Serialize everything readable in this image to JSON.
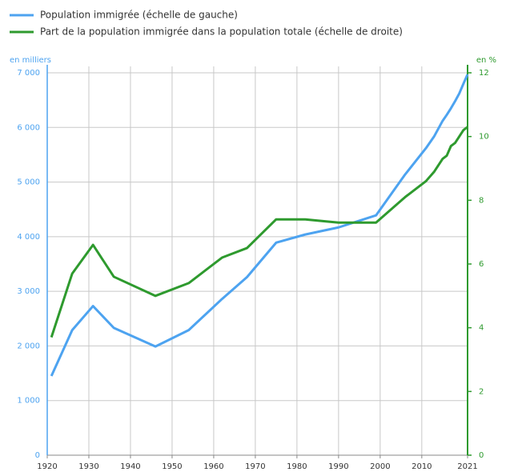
{
  "chart_data": {
    "type": "line",
    "x": [
      1921,
      1926,
      1931,
      1936,
      1946,
      1954,
      1962,
      1968,
      1975,
      1982,
      1990,
      1999,
      2006,
      2011,
      2013,
      2015,
      2016,
      2017,
      2018,
      2019,
      2020,
      2021
    ],
    "series": [
      {
        "name": "Population immigrée (échelle de gauche)",
        "color": "#4da3f0",
        "axis": "y",
        "values": [
          1450,
          2290,
          2730,
          2330,
          1990,
          2290,
          2860,
          3260,
          3890,
          4040,
          4170,
          4390,
          5140,
          5620,
          5840,
          6120,
          6230,
          6350,
          6480,
          6620,
          6800,
          6970
        ]
      },
      {
        "name": "Part de la population immigrée dans la population totale (échelle de droite)",
        "color": "#2e9a2e",
        "axis": "y2",
        "values": [
          3.7,
          5.7,
          6.6,
          5.6,
          5.0,
          5.4,
          6.2,
          6.5,
          7.4,
          7.4,
          7.3,
          7.3,
          8.1,
          8.6,
          8.9,
          9.3,
          9.4,
          9.7,
          9.8,
          10.0,
          10.2,
          10.3
        ]
      }
    ],
    "ylabel": "en milliers",
    "y2label": "en %",
    "xlim": [
      1920,
      2021
    ],
    "xticks": [
      1920,
      1930,
      1940,
      1950,
      1960,
      1970,
      1980,
      1990,
      2000,
      2010,
      2021
    ],
    "ylim": [
      0,
      7000
    ],
    "yticks": [
      0,
      {
        "value": 1000,
        "label": "1 000"
      },
      {
        "value": 2000,
        "label": "2 000"
      },
      {
        "value": 3000,
        "label": "3 000"
      },
      {
        "value": 4000,
        "label": "4 000"
      },
      {
        "value": 5000,
        "label": "5 000"
      },
      {
        "value": 6000,
        "label": "6 000"
      },
      {
        "value": 7000,
        "label": "7 000"
      }
    ],
    "y2lim": [
      0,
      12
    ],
    "y2ticks": [
      0,
      2,
      4,
      6,
      8,
      10,
      12
    ],
    "grid": true,
    "legend": "top-left"
  }
}
